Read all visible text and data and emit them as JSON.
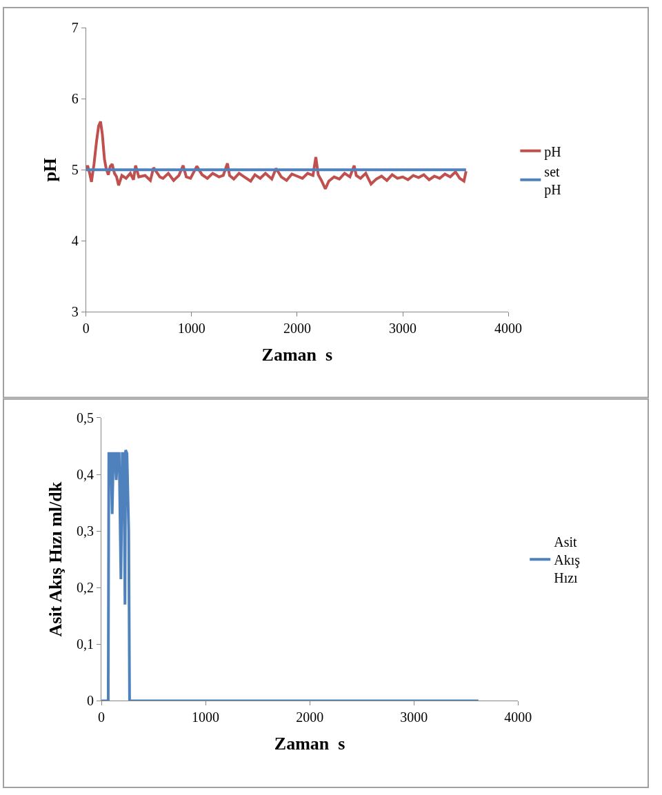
{
  "chart_data": [
    {
      "type": "line",
      "xlabel": "Zaman  s",
      "ylabel": "pH",
      "xlim": [
        0,
        4000
      ],
      "xticks": [
        0,
        1000,
        2000,
        3000,
        4000
      ],
      "ylim": [
        3,
        7
      ],
      "yticks": [
        3,
        4,
        5,
        6,
        7
      ],
      "grid": false,
      "legend": "right",
      "marker": "none",
      "line_style": "solid",
      "series": [
        {
          "name": "pH",
          "color": "#c0504d",
          "x": [
            0,
            15,
            35,
            52,
            76,
            100,
            120,
            138,
            155,
            175,
            191,
            211,
            230,
            248,
            270,
            290,
            309,
            340,
            380,
            420,
            450,
            470,
            500,
            560,
            610,
            640,
            700,
            730,
            780,
            830,
            880,
            920,
            950,
            990,
            1050,
            1100,
            1150,
            1200,
            1260,
            1300,
            1340,
            1360,
            1400,
            1450,
            1500,
            1560,
            1600,
            1650,
            1700,
            1760,
            1800,
            1850,
            1900,
            1950,
            2000,
            2050,
            2100,
            2150,
            2177,
            2200,
            2230,
            2267,
            2300,
            2350,
            2400,
            2450,
            2500,
            2540,
            2560,
            2600,
            2650,
            2700,
            2750,
            2800,
            2850,
            2900,
            2950,
            3000,
            3050,
            3100,
            3150,
            3200,
            3250,
            3300,
            3350,
            3400,
            3450,
            3500,
            3540,
            3580,
            3600
          ],
          "values": [
            5.0,
            5.06,
            4.95,
            4.83,
            5.08,
            5.4,
            5.62,
            5.68,
            5.5,
            5.15,
            5.02,
            4.93,
            5.05,
            5.08,
            4.95,
            4.9,
            4.78,
            4.92,
            4.88,
            4.95,
            4.86,
            5.06,
            4.9,
            4.92,
            4.85,
            5.03,
            4.9,
            4.88,
            4.95,
            4.85,
            4.92,
            5.06,
            4.9,
            4.88,
            5.05,
            4.93,
            4.88,
            4.95,
            4.9,
            4.92,
            5.09,
            4.92,
            4.87,
            4.95,
            4.9,
            4.84,
            4.93,
            4.88,
            4.95,
            4.87,
            5.02,
            4.9,
            4.85,
            4.94,
            4.91,
            4.88,
            4.95,
            4.92,
            5.18,
            4.93,
            4.85,
            4.73,
            4.84,
            4.9,
            4.87,
            4.95,
            4.9,
            5.06,
            4.92,
            4.88,
            4.95,
            4.8,
            4.87,
            4.91,
            4.85,
            4.93,
            4.88,
            4.9,
            4.86,
            4.92,
            4.89,
            4.93,
            4.86,
            4.91,
            4.88,
            4.94,
            4.9,
            4.97,
            4.88,
            4.84,
            4.98
          ]
        },
        {
          "name": "set pH",
          "color": "#4f81bd",
          "x": [
            0,
            3600
          ],
          "values": [
            5,
            5
          ]
        }
      ]
    },
    {
      "type": "line",
      "xlabel": "Zaman  s",
      "ylabel": "Asit Akış Hızı ml/dk",
      "xlim": [
        0,
        4000
      ],
      "xticks": [
        0,
        1000,
        2000,
        3000,
        4000
      ],
      "ylim": [
        0,
        0.5
      ],
      "yticks": [
        0,
        {
          "value": 0.1,
          "label": "0,1"
        },
        {
          "value": 0.2,
          "label": "0,2"
        },
        {
          "value": 0.3,
          "label": "0,3"
        },
        {
          "value": 0.4,
          "label": "0,4"
        },
        {
          "value": 0.5,
          "label": "0,5"
        }
      ],
      "grid": false,
      "legend": "right",
      "marker": "none",
      "line_style": "solid",
      "series": [
        {
          "name": "Asit Akış Hızı",
          "color": "#4f81bd",
          "x": [
            0,
            65,
            71,
            90,
            103,
            115,
            130,
            142,
            155,
            170,
            187,
            200,
            215,
            226,
            232,
            245,
            262,
            270,
            300,
            3620
          ],
          "values": [
            0,
            0,
            0.437,
            0.437,
            0.33,
            0.437,
            0.437,
            0.39,
            0.437,
            0.437,
            0.215,
            0.437,
            0.437,
            0.17,
            0.443,
            0.437,
            0.3,
            0,
            0,
            0
          ]
        }
      ]
    }
  ]
}
